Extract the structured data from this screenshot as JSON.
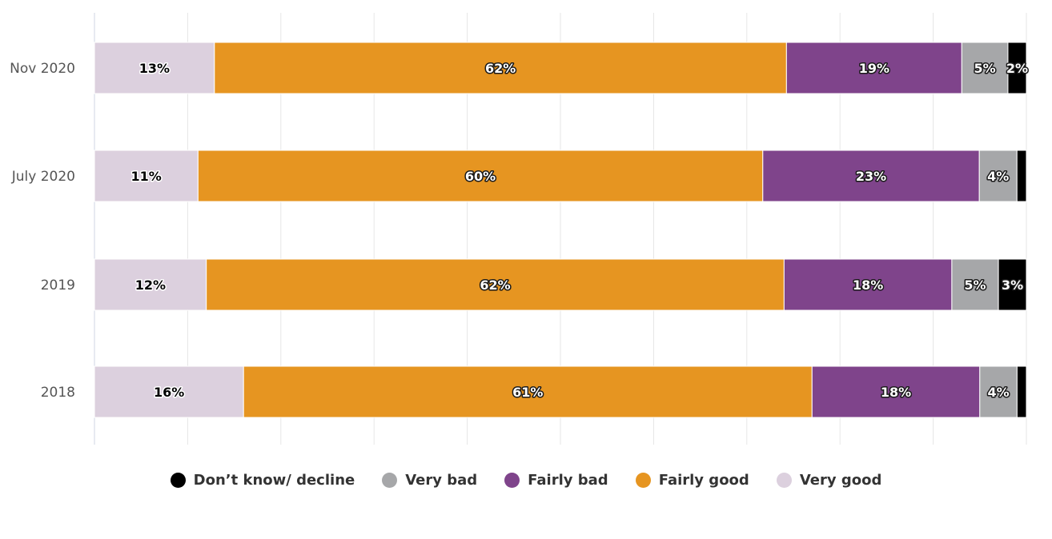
{
  "chart_data": {
    "type": "bar",
    "orientation": "horizontal",
    "stacking": "percent",
    "categories": [
      "Nov 2020",
      "July 2020",
      "2019",
      "2018"
    ],
    "series": [
      {
        "name": "Very good",
        "color": "#dcd0de",
        "values": [
          13,
          11,
          12,
          16
        ],
        "labels": [
          "13%",
          "11%",
          "12%",
          "16%"
        ]
      },
      {
        "name": "Fairly good",
        "color": "#e69521",
        "values": [
          62,
          60,
          62,
          61
        ],
        "labels": [
          "62%",
          "60%",
          "62%",
          "61%"
        ]
      },
      {
        "name": "Fairly bad",
        "color": "#7f448b",
        "values": [
          19,
          23,
          18,
          18
        ],
        "labels": [
          "19%",
          "23%",
          "18%",
          "18%"
        ]
      },
      {
        "name": "Very bad",
        "color": "#a6a7a9",
        "values": [
          5,
          4,
          5,
          4
        ],
        "labels": [
          "5%",
          "4%",
          "5%",
          "4%"
        ]
      },
      {
        "name": "Don’t know/ decline",
        "color": "#000000",
        "values": [
          2,
          1,
          3,
          1
        ],
        "labels": [
          "2%",
          "",
          "3%",
          ""
        ]
      }
    ],
    "xlim": [
      0,
      100
    ],
    "grid": true,
    "legend_position": "bottom",
    "legend_order": [
      "Don’t know/ decline",
      "Very bad",
      "Fairly bad",
      "Fairly good",
      "Very good"
    ]
  }
}
